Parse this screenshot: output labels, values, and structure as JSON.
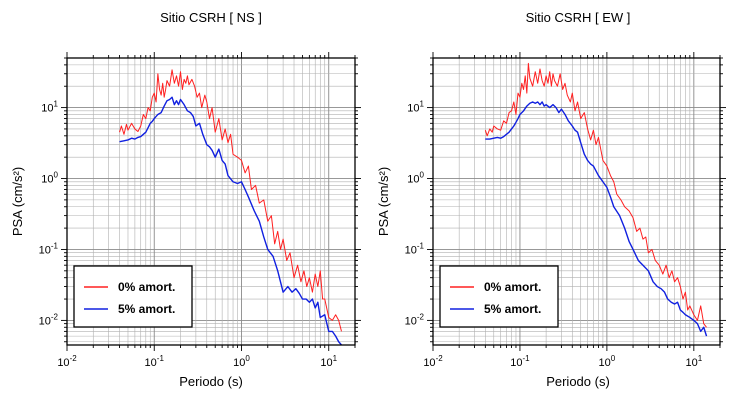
{
  "chart_data": [
    {
      "type": "line",
      "title": "Sitio CSRH [ NS ]",
      "xlabel": "Periodo (s)",
      "ylabel": "PSA (cm/s²)",
      "xscale": "log",
      "yscale": "log",
      "xlim": [
        0.01,
        20
      ],
      "ylim": [
        0.0045,
        50
      ],
      "grid": true,
      "legend_position": "bottom-left",
      "x_ticks": [
        {
          "base": "10",
          "exp": "-2",
          "value": 0.01
        },
        {
          "base": "10",
          "exp": "-1",
          "value": 0.1
        },
        {
          "base": "10",
          "exp": "0",
          "value": 1
        },
        {
          "base": "10",
          "exp": "1",
          "value": 10
        }
      ],
      "y_ticks": [
        {
          "base": "10",
          "exp": "-2",
          "value": 0.01
        },
        {
          "base": "10",
          "exp": "-1",
          "value": 0.1
        },
        {
          "base": "10",
          "exp": "0",
          "value": 1
        },
        {
          "base": "10",
          "exp": "1",
          "value": 10
        }
      ],
      "series": [
        {
          "name": "0% amort.",
          "color": "#ff2020",
          "x": [
            0.04,
            0.042,
            0.045,
            0.048,
            0.05,
            0.055,
            0.06,
            0.065,
            0.07,
            0.075,
            0.08,
            0.085,
            0.09,
            0.095,
            0.1,
            0.105,
            0.11,
            0.115,
            0.12,
            0.125,
            0.13,
            0.135,
            0.14,
            0.15,
            0.16,
            0.17,
            0.18,
            0.19,
            0.2,
            0.21,
            0.22,
            0.23,
            0.24,
            0.25,
            0.27,
            0.29,
            0.31,
            0.33,
            0.35,
            0.38,
            0.4,
            0.43,
            0.46,
            0.5,
            0.55,
            0.6,
            0.65,
            0.7,
            0.75,
            0.8,
            0.9,
            1.0,
            1.1,
            1.2,
            1.3,
            1.45,
            1.6,
            1.8,
            2.0,
            2.2,
            2.4,
            2.6,
            2.8,
            3.0,
            3.3,
            3.6,
            4.0,
            4.4,
            4.8,
            5.2,
            5.6,
            6.0,
            6.5,
            7.0,
            7.5,
            8.0,
            8.5,
            9.0,
            10.0,
            11.0,
            12.0,
            13.0,
            14.0
          ],
          "y": [
            4.5,
            5.5,
            4.2,
            5.8,
            4.8,
            6.0,
            5.0,
            4.6,
            5.5,
            8.0,
            7.0,
            10.0,
            9.0,
            14.0,
            16.0,
            12.0,
            30.0,
            18.0,
            15.0,
            22.0,
            14.0,
            18.0,
            24.0,
            20.0,
            34.0,
            22.0,
            28.0,
            20.0,
            32.0,
            18.0,
            25.0,
            22.0,
            28.0,
            21.0,
            25.0,
            20.0,
            14.0,
            16.0,
            10.0,
            15.0,
            12.0,
            7.0,
            10.0,
            4.5,
            7.0,
            3.5,
            5.0,
            3.2,
            4.2,
            2.2,
            2.0,
            1.8,
            1.2,
            1.5,
            0.7,
            0.8,
            0.45,
            0.5,
            0.25,
            0.3,
            0.12,
            0.18,
            0.1,
            0.14,
            0.07,
            0.09,
            0.04,
            0.06,
            0.035,
            0.05,
            0.03,
            0.04,
            0.025,
            0.045,
            0.03,
            0.05,
            0.02,
            0.02,
            0.011,
            0.01,
            0.012,
            0.01,
            0.007
          ]
        },
        {
          "name": "5% amort.",
          "color": "#1020e0",
          "x": [
            0.04,
            0.045,
            0.05,
            0.055,
            0.06,
            0.065,
            0.07,
            0.075,
            0.08,
            0.085,
            0.09,
            0.095,
            0.1,
            0.11,
            0.12,
            0.13,
            0.14,
            0.15,
            0.16,
            0.17,
            0.18,
            0.19,
            0.2,
            0.22,
            0.24,
            0.26,
            0.28,
            0.3,
            0.33,
            0.36,
            0.4,
            0.43,
            0.46,
            0.5,
            0.55,
            0.6,
            0.65,
            0.7,
            0.8,
            0.9,
            1.0,
            1.1,
            1.2,
            1.4,
            1.6,
            1.8,
            2.0,
            2.3,
            2.6,
            3.0,
            3.4,
            3.8,
            4.2,
            4.6,
            5.0,
            5.5,
            6.0,
            6.5,
            7.0,
            7.5,
            8.0,
            9.0,
            10.0,
            11.0,
            12.0,
            13.0,
            14.0
          ],
          "y": [
            3.3,
            3.4,
            3.5,
            3.7,
            3.6,
            3.8,
            3.9,
            4.2,
            4.5,
            5.2,
            6.0,
            6.4,
            7.0,
            8.0,
            8.5,
            10.5,
            12.5,
            13.0,
            14.0,
            11.0,
            12.5,
            11.0,
            13.0,
            11.0,
            9.0,
            8.5,
            7.5,
            5.5,
            6.0,
            4.2,
            3.0,
            2.8,
            2.5,
            2.0,
            2.6,
            1.8,
            1.6,
            1.1,
            0.9,
            0.85,
            0.9,
            0.7,
            0.55,
            0.35,
            0.25,
            0.15,
            0.1,
            0.08,
            0.05,
            0.025,
            0.03,
            0.025,
            0.028,
            0.024,
            0.02,
            0.02,
            0.018,
            0.02,
            0.015,
            0.018,
            0.011,
            0.012,
            0.007,
            0.007,
            0.006,
            0.005,
            0.0045
          ]
        }
      ]
    },
    {
      "type": "line",
      "title": "Sitio CSRH [ EW ]",
      "xlabel": "Periodo (s)",
      "ylabel": "PSA (cm/s²)",
      "xscale": "log",
      "yscale": "log",
      "xlim": [
        0.01,
        20
      ],
      "ylim": [
        0.0045,
        50
      ],
      "grid": true,
      "legend_position": "bottom-left",
      "x_ticks": [
        {
          "base": "10",
          "exp": "-2",
          "value": 0.01
        },
        {
          "base": "10",
          "exp": "-1",
          "value": 0.1
        },
        {
          "base": "10",
          "exp": "0",
          "value": 1
        },
        {
          "base": "10",
          "exp": "1",
          "value": 10
        }
      ],
      "y_ticks": [
        {
          "base": "10",
          "exp": "-2",
          "value": 0.01
        },
        {
          "base": "10",
          "exp": "-1",
          "value": 0.1
        },
        {
          "base": "10",
          "exp": "0",
          "value": 1
        },
        {
          "base": "10",
          "exp": "1",
          "value": 10
        }
      ],
      "series": [
        {
          "name": "0% amort.",
          "color": "#ff2020",
          "x": [
            0.04,
            0.042,
            0.045,
            0.048,
            0.05,
            0.055,
            0.06,
            0.065,
            0.07,
            0.075,
            0.08,
            0.085,
            0.09,
            0.095,
            0.1,
            0.105,
            0.11,
            0.115,
            0.12,
            0.125,
            0.13,
            0.14,
            0.15,
            0.16,
            0.17,
            0.18,
            0.19,
            0.2,
            0.21,
            0.22,
            0.23,
            0.24,
            0.25,
            0.27,
            0.29,
            0.31,
            0.33,
            0.35,
            0.38,
            0.4,
            0.43,
            0.46,
            0.5,
            0.55,
            0.6,
            0.65,
            0.7,
            0.75,
            0.8,
            0.9,
            1.0,
            1.1,
            1.2,
            1.3,
            1.45,
            1.6,
            1.8,
            2.0,
            2.2,
            2.4,
            2.6,
            2.8,
            3.0,
            3.3,
            3.6,
            4.0,
            4.4,
            4.8,
            5.2,
            5.6,
            6.0,
            6.5,
            7.0,
            7.5,
            8.0,
            8.5,
            9.0,
            10.0,
            11.0,
            12.0,
            13.0,
            14.0
          ],
          "y": [
            4.8,
            4.0,
            5.0,
            4.5,
            5.5,
            5.0,
            4.8,
            6.5,
            6.0,
            8.5,
            9.0,
            12.0,
            8.0,
            16.0,
            14.0,
            22.0,
            18.0,
            28.0,
            16.0,
            42.0,
            26.0,
            20.0,
            32.0,
            22.0,
            35.0,
            24.0,
            20.0,
            28.0,
            22.0,
            32.0,
            20.0,
            30.0,
            24.0,
            20.0,
            30.0,
            18.0,
            22.0,
            15.0,
            12.0,
            16.0,
            9.0,
            12.0,
            7.0,
            8.5,
            5.0,
            3.5,
            4.8,
            3.0,
            3.8,
            1.8,
            1.5,
            1.1,
            0.9,
            0.6,
            0.5,
            0.4,
            0.35,
            0.28,
            0.18,
            0.2,
            0.14,
            0.15,
            0.09,
            0.1,
            0.07,
            0.06,
            0.045,
            0.06,
            0.04,
            0.05,
            0.035,
            0.04,
            0.03,
            0.02,
            0.025,
            0.014,
            0.016,
            0.012,
            0.01,
            0.016,
            0.009,
            0.008
          ]
        },
        {
          "name": "5% amort.",
          "color": "#1020e0",
          "x": [
            0.04,
            0.045,
            0.05,
            0.055,
            0.06,
            0.065,
            0.07,
            0.075,
            0.08,
            0.085,
            0.09,
            0.095,
            0.1,
            0.11,
            0.12,
            0.13,
            0.14,
            0.15,
            0.16,
            0.17,
            0.18,
            0.19,
            0.2,
            0.22,
            0.24,
            0.26,
            0.28,
            0.3,
            0.33,
            0.36,
            0.4,
            0.43,
            0.46,
            0.5,
            0.55,
            0.6,
            0.65,
            0.7,
            0.8,
            0.9,
            1.0,
            1.1,
            1.2,
            1.4,
            1.6,
            1.8,
            2.0,
            2.3,
            2.6,
            3.0,
            3.4,
            3.8,
            4.2,
            4.6,
            5.0,
            5.5,
            6.0,
            6.5,
            7.0,
            7.5,
            8.0,
            9.0,
            10.0,
            11.0,
            12.0,
            13.0,
            14.0
          ],
          "y": [
            3.6,
            3.6,
            3.7,
            3.8,
            3.7,
            3.9,
            4.2,
            4.5,
            5.0,
            5.5,
            6.2,
            7.0,
            8.0,
            9.0,
            10.5,
            11.5,
            12.0,
            11.5,
            12.0,
            11.0,
            12.0,
            10.5,
            11.0,
            10.0,
            11.0,
            10.0,
            8.5,
            9.5,
            8.0,
            6.5,
            5.5,
            4.8,
            4.5,
            3.2,
            2.2,
            1.8,
            1.6,
            1.5,
            1.1,
            0.9,
            0.75,
            0.55,
            0.4,
            0.3,
            0.2,
            0.13,
            0.1,
            0.07,
            0.06,
            0.05,
            0.035,
            0.03,
            0.028,
            0.025,
            0.02,
            0.018,
            0.017,
            0.018,
            0.014,
            0.013,
            0.012,
            0.011,
            0.01,
            0.009,
            0.007,
            0.008,
            0.006
          ]
        }
      ]
    }
  ]
}
